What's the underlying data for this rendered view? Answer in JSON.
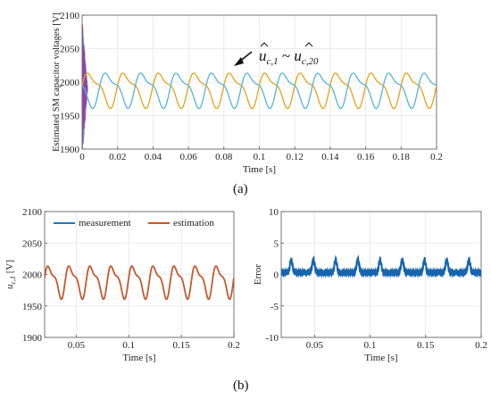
{
  "colors": {
    "blue": "#56B4D8",
    "orange": "#E3A21A",
    "meas": "#1F77C4",
    "est": "#D4541F",
    "error": "#1565B0",
    "startup": [
      "#9B59B6",
      "#2ECC71",
      "#E74C3C",
      "#3498DB",
      "#F39C12",
      "#1ABC9C",
      "#C0392B",
      "#E3A21A",
      "#56B4D8",
      "#8E44AD"
    ]
  },
  "labels": {
    "a": "(a)",
    "b": "(b)"
  },
  "chart_data": [
    {
      "type": "line",
      "panel": "a",
      "ylabel": "Estimated SM capacitor voltages [V]",
      "xlabel": "Time [s]",
      "xlim": [
        0,
        0.2
      ],
      "ylim": [
        1900,
        2100
      ],
      "xticks": [
        "0",
        "0.02",
        "0.04",
        "0.06",
        "0.08",
        "0.1",
        "0.12",
        "0.14",
        "0.16",
        "0.18",
        "0.2"
      ],
      "yticks": [
        "1900",
        "1950",
        "2000",
        "2050",
        "2100"
      ],
      "grid": true,
      "annotation": {
        "hat_base": "u",
        "sub_first": "c,1",
        "tilde": "~",
        "sub_last": "c,20"
      },
      "series": [
        {
          "color_key": "orange",
          "mean": 1990,
          "amplitude": 31,
          "frequency_hz": 50,
          "phase_deg": 0
        },
        {
          "color_key": "blue",
          "mean": 1990,
          "amplitude": 31,
          "frequency_hz": 50,
          "phase_deg": 180
        }
      ],
      "startup_transient": {
        "x_end": 0.003,
        "y_range": [
          1900,
          2100
        ],
        "n_traces": 20
      }
    },
    {
      "type": "line",
      "panel": "b-left",
      "ylabel": "u_{c,1} [V]",
      "ylabel_base": "u",
      "ylabel_sub": "c,1",
      "ylabel_unit": " [V]",
      "xlabel": "Time [s]",
      "xlim": [
        0.02,
        0.2
      ],
      "ylim": [
        1900,
        2100
      ],
      "xticks": [
        "0.05",
        "0.1",
        "0.15",
        "0.2"
      ],
      "yticks": [
        "1900",
        "1950",
        "2000",
        "2050",
        "2100"
      ],
      "grid": true,
      "legend": {
        "placement": "top",
        "entries": [
          "measurement",
          "estimation"
        ]
      },
      "series": [
        {
          "name": "measurement",
          "color_key": "meas",
          "mean": 1990,
          "amplitude": 31,
          "frequency_hz": 50
        },
        {
          "name": "estimation",
          "color_key": "est",
          "mean": 1990,
          "amplitude": 31,
          "frequency_hz": 50
        }
      ]
    },
    {
      "type": "line",
      "panel": "b-right",
      "ylabel": "Error",
      "xlabel": "Time [s]",
      "xlim": [
        0.02,
        0.2
      ],
      "ylim": [
        -10,
        10
      ],
      "xticks": [
        "0.05",
        "0.1",
        "0.15",
        "0.2"
      ],
      "yticks": [
        "-10",
        "-5",
        "0",
        "5",
        "10"
      ],
      "grid": true,
      "series": [
        {
          "color_key": "error",
          "mean": 0.3,
          "peak": 2.0,
          "frequency_hz": 50,
          "ripple": 0.35
        }
      ]
    }
  ]
}
